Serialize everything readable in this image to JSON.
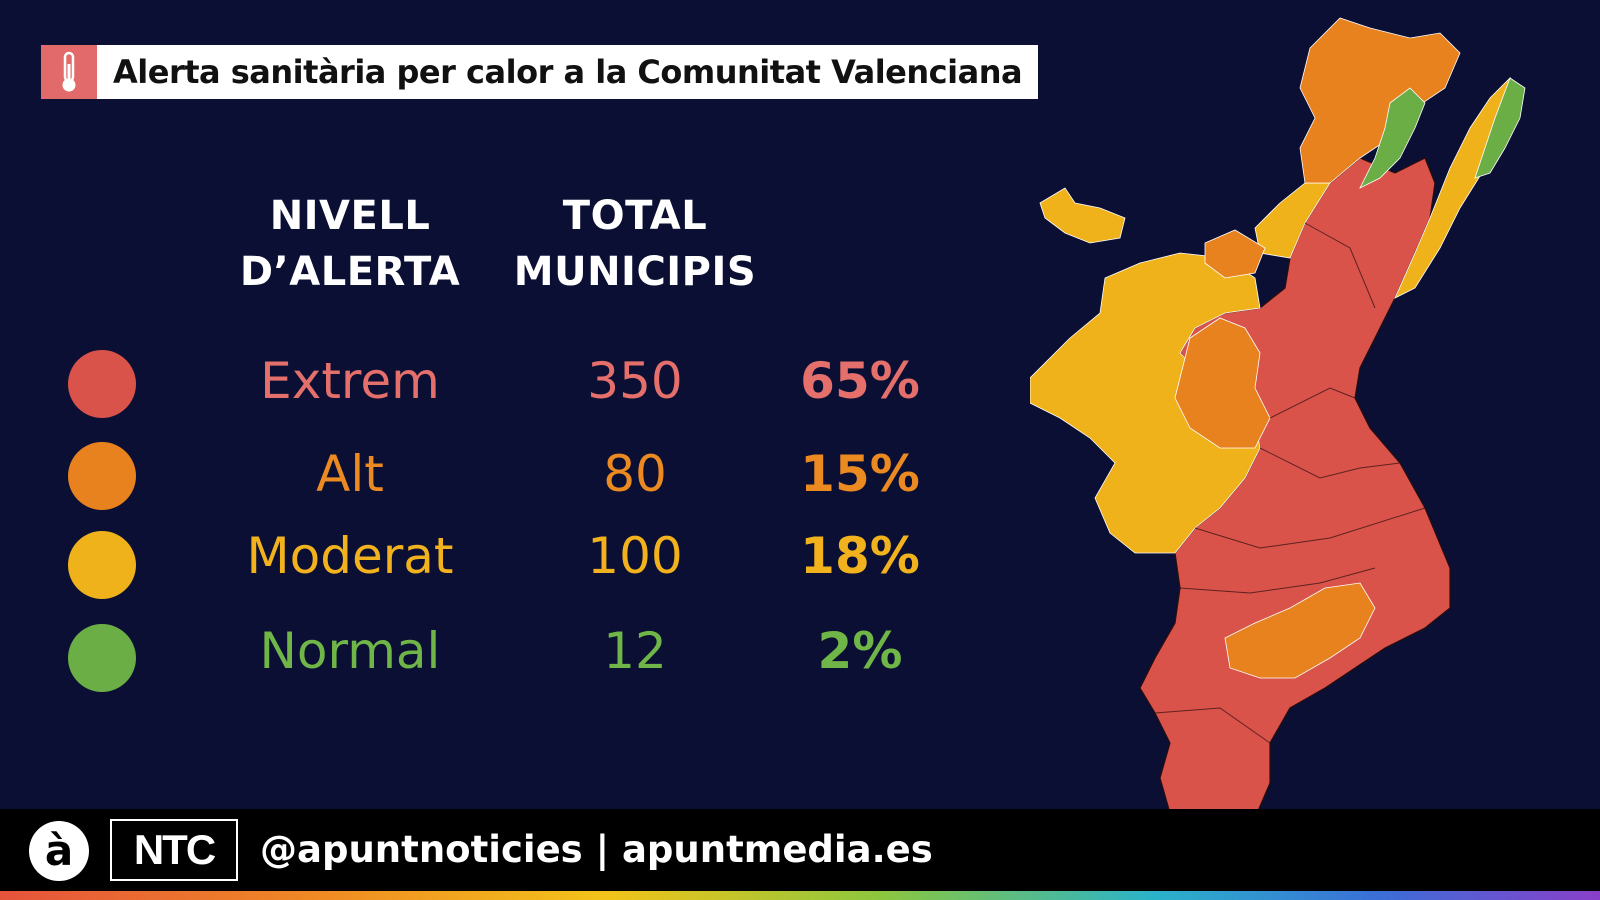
{
  "title": {
    "icon": "thermometer-icon",
    "text": "Alerta sanitària per calor a la Comunitat Valenciana"
  },
  "table": {
    "headers": {
      "level": [
        "NIVELL",
        "D’ALERTA"
      ],
      "total": [
        "TOTAL",
        "MUNICIPIS"
      ]
    },
    "rows": [
      {
        "level": "Extrem",
        "count": "350",
        "percent": "65%",
        "color": "#d9534a",
        "text_color": "#e46f6b"
      },
      {
        "level": "Alt",
        "count": "80",
        "percent": "15%",
        "color": "#e8821e",
        "text_color": "#ec8a22"
      },
      {
        "level": "Moderat",
        "count": "100",
        "percent": "18%",
        "color": "#f0b21b",
        "text_color": "#f2b21d"
      },
      {
        "level": "Normal",
        "count": "12",
        "percent": "2%",
        "color": "#6aae45",
        "text_color": "#6fb547"
      }
    ]
  },
  "footer": {
    "logo_a": "à",
    "logo_ntc": "NTC",
    "handle": "@apuntnoticies | apuntmedia.es"
  },
  "map": {
    "region": "Comunitat Valenciana",
    "colors": {
      "extrem": "#d9534a",
      "alt": "#e8821e",
      "moderat": "#f0b21b",
      "normal": "#6aae45"
    }
  }
}
